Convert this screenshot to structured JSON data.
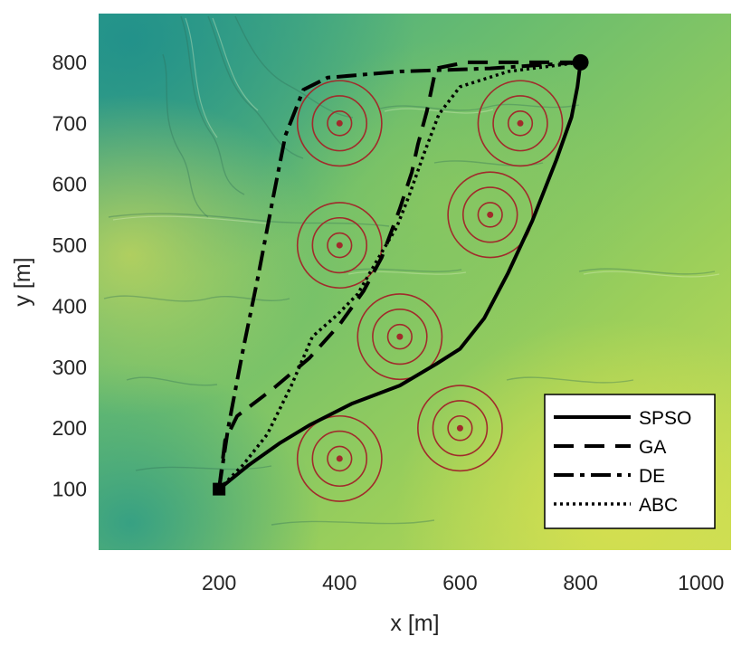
{
  "chart_data": {
    "type": "line",
    "xlabel": "x [m]",
    "ylabel": "y [m]",
    "xlim": [
      0,
      1050
    ],
    "ylim": [
      0,
      880
    ],
    "xticks": [
      200,
      400,
      600,
      800,
      1000
    ],
    "yticks": [
      100,
      200,
      300,
      400,
      500,
      600,
      700,
      800
    ],
    "grid": false,
    "legend_position": "bottom-right",
    "background": "terrain elevation map",
    "start": {
      "x": 200,
      "y": 100,
      "marker": "square"
    },
    "goal": {
      "x": 800,
      "y": 800,
      "marker": "circle"
    },
    "threats": [
      {
        "x": 400,
        "y": 700
      },
      {
        "x": 700,
        "y": 700
      },
      {
        "x": 650,
        "y": 550
      },
      {
        "x": 400,
        "y": 500
      },
      {
        "x": 500,
        "y": 350
      },
      {
        "x": 600,
        "y": 200
      },
      {
        "x": 400,
        "y": 150
      }
    ],
    "threat_radii": [
      20,
      45,
      70
    ],
    "colors": {
      "threat": "#a12b2b",
      "path": "#000000"
    },
    "series": [
      {
        "name": "SPSO",
        "dash": "solid",
        "points": [
          [
            200,
            100
          ],
          [
            250,
            140
          ],
          [
            300,
            175
          ],
          [
            350,
            205
          ],
          [
            420,
            240
          ],
          [
            500,
            270
          ],
          [
            560,
            305
          ],
          [
            600,
            330
          ],
          [
            640,
            380
          ],
          [
            680,
            455
          ],
          [
            720,
            540
          ],
          [
            760,
            640
          ],
          [
            785,
            710
          ],
          [
            795,
            760
          ],
          [
            800,
            800
          ]
        ]
      },
      {
        "name": "GA",
        "dash": "dashed",
        "points": [
          [
            200,
            100
          ],
          [
            210,
            180
          ],
          [
            230,
            220
          ],
          [
            290,
            265
          ],
          [
            350,
            315
          ],
          [
            400,
            370
          ],
          [
            440,
            425
          ],
          [
            470,
            480
          ],
          [
            500,
            560
          ],
          [
            520,
            620
          ],
          [
            530,
            665
          ],
          [
            545,
            720
          ],
          [
            560,
            790
          ],
          [
            610,
            800
          ],
          [
            800,
            800
          ]
        ]
      },
      {
        "name": "DE",
        "dash": "dashdot",
        "points": [
          [
            200,
            100
          ],
          [
            215,
            200
          ],
          [
            240,
            330
          ],
          [
            265,
            450
          ],
          [
            290,
            580
          ],
          [
            310,
            680
          ],
          [
            340,
            755
          ],
          [
            380,
            775
          ],
          [
            500,
            785
          ],
          [
            650,
            790
          ],
          [
            800,
            800
          ]
        ]
      },
      {
        "name": "ABC",
        "dash": "dotted",
        "points": [
          [
            200,
            100
          ],
          [
            240,
            140
          ],
          [
            280,
            190
          ],
          [
            320,
            270
          ],
          [
            355,
            350
          ],
          [
            395,
            385
          ],
          [
            430,
            420
          ],
          [
            465,
            480
          ],
          [
            495,
            530
          ],
          [
            515,
            580
          ],
          [
            540,
            650
          ],
          [
            565,
            715
          ],
          [
            600,
            760
          ],
          [
            680,
            785
          ],
          [
            800,
            800
          ]
        ]
      }
    ]
  }
}
